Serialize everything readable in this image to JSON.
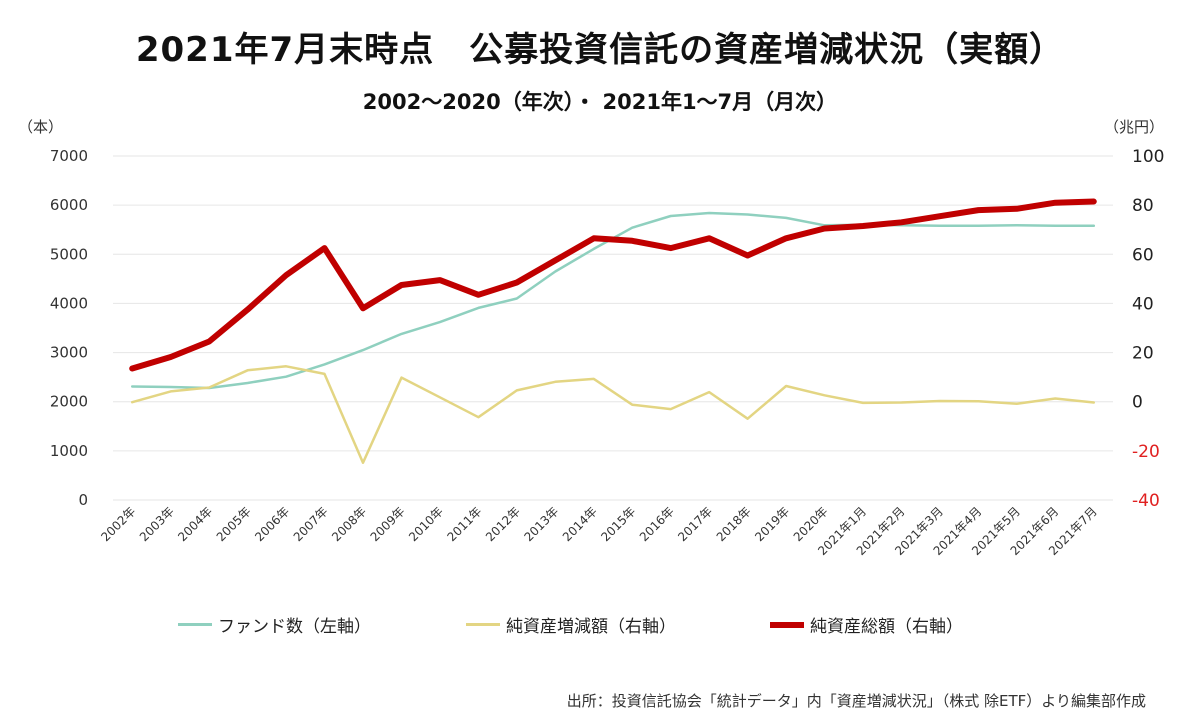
{
  "title": "2021年7月末時点　公募投資信託の資産増減状況（実額）",
  "subtitle": "2002〜2020（年次）・ 2021年1〜7月（月次）",
  "source": "出所：投資信託協会「統計データ」内「資産増減状況」（株式 除ETF）より編集部作成",
  "chart_data": {
    "type": "line",
    "title": "2021年7月末時点　公募投資信託の資産増減状況（実額）",
    "subtitle": "2002〜2020（年次）・ 2021年1〜7月（月次）",
    "categories": [
      "2002年",
      "2003年",
      "2004年",
      "2005年",
      "2006年",
      "2007年",
      "2008年",
      "2009年",
      "2010年",
      "2011年",
      "2012年",
      "2013年",
      "2014年",
      "2015年",
      "2016年",
      "2017年",
      "2018年",
      "2019年",
      "2020年",
      "2021年1月",
      "2021年2月",
      "2021年3月",
      "2021年4月",
      "2021年5月",
      "2021年6月",
      "2021年7月"
    ],
    "y_left": {
      "unit": "（本）",
      "ylim": [
        0,
        7000
      ],
      "ticks": [
        0,
        1000,
        2000,
        3000,
        4000,
        5000,
        6000,
        7000
      ]
    },
    "y_right": {
      "unit": "（兆円）",
      "ylim": [
        -40,
        100
      ],
      "ticks": [
        -40,
        -20,
        0,
        20,
        40,
        60,
        80,
        100
      ],
      "negative_color": "#e02020"
    },
    "grid": true,
    "legend_position": "bottom",
    "series": [
      {
        "name": "ファンド数（左軸）",
        "axis": "left",
        "color": "#8fd0bf",
        "width": 2.5,
        "values": [
          2310,
          2300,
          2280,
          2380,
          2510,
          2760,
          3050,
          3380,
          3620,
          3910,
          4100,
          4650,
          5110,
          5540,
          5780,
          5840,
          5810,
          5740,
          5590,
          5600,
          5590,
          5580,
          5580,
          5590,
          5580,
          5580
        ]
      },
      {
        "name": "純資産増減額（右軸）",
        "axis": "right",
        "color": "#e3d583",
        "width": 2.5,
        "values": [
          -0.2,
          4.2,
          5.8,
          12.8,
          14.4,
          11.3,
          -24.8,
          9.8,
          1.8,
          -6.3,
          4.6,
          8.1,
          9.3,
          -1.2,
          -3.0,
          3.9,
          -6.9,
          6.4,
          2.6,
          -0.5,
          -0.3,
          0.3,
          0.2,
          -0.8,
          1.3,
          -0.3
        ]
      },
      {
        "name": "純資産総額（右軸）",
        "axis": "right",
        "color": "#c00000",
        "width": 6,
        "values": [
          13.5,
          18.2,
          24.5,
          37.5,
          51.5,
          62.5,
          38.0,
          47.5,
          49.5,
          43.5,
          48.5,
          57.5,
          66.5,
          65.5,
          62.5,
          66.5,
          59.5,
          66.5,
          70.5,
          71.5,
          73.0,
          75.5,
          78.0,
          78.5,
          81.0,
          81.5
        ]
      }
    ]
  }
}
